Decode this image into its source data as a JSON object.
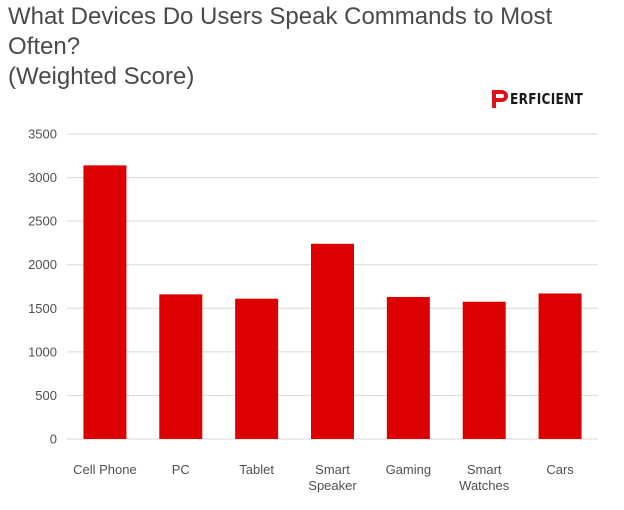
{
  "title": "What Devices Do Users Speak Commands to Most Often?\n(Weighted Score)",
  "logo": {
    "text": "ERFICIENT",
    "mark": "P",
    "brand_color": "#d9141a"
  },
  "chart_data": {
    "type": "bar",
    "title": "What Devices Do Users Speak Commands to Most Often? (Weighted Score)",
    "categories": [
      "Cell Phone",
      "PC",
      "Tablet",
      "Smart Speaker",
      "Gaming",
      "Smart Watches",
      "Cars"
    ],
    "category_label_lines": [
      [
        "Cell Phone"
      ],
      [
        "PC"
      ],
      [
        "Tablet"
      ],
      [
        "Smart",
        "Speaker"
      ],
      [
        "Gaming"
      ],
      [
        "Smart",
        "Watches"
      ],
      [
        "Cars"
      ]
    ],
    "values": [
      3140,
      1660,
      1610,
      2240,
      1630,
      1575,
      1670
    ],
    "ylim": [
      0,
      3500
    ],
    "yticks": [
      0,
      500,
      1000,
      1500,
      2000,
      2500,
      3000,
      3500
    ],
    "xlabel": "",
    "ylabel": "",
    "grid": true,
    "bar_color": "#dc0000",
    "grid_color": "#d9d9d9"
  }
}
